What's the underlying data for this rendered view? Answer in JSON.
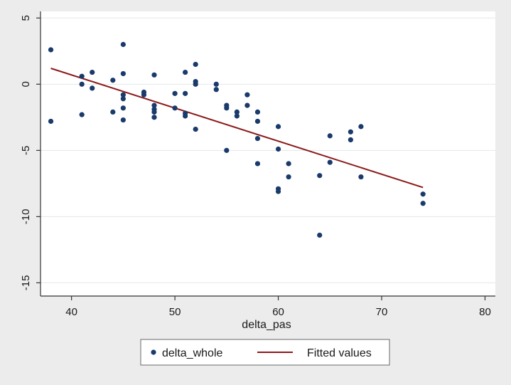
{
  "chart_data": {
    "type": "scatter",
    "title": "",
    "xlabel": "delta_pas",
    "ylabel": "",
    "xlim": [
      37,
      81
    ],
    "ylim": [
      -16,
      5.5
    ],
    "x_ticks": [
      40,
      50,
      60,
      70,
      80
    ],
    "y_ticks": [
      5,
      0,
      -5,
      -10,
      -15
    ],
    "grid": true,
    "legend_position": "bottom",
    "series": [
      {
        "name": "delta_whole",
        "kind": "scatter",
        "color": "#1a3a6b",
        "points": [
          [
            38,
            2.6
          ],
          [
            38,
            -2.8
          ],
          [
            41,
            0.6
          ],
          [
            41,
            0.0
          ],
          [
            41,
            -2.3
          ],
          [
            42,
            0.9
          ],
          [
            42,
            -0.3
          ],
          [
            44,
            0.3
          ],
          [
            44,
            -2.1
          ],
          [
            45,
            3.0
          ],
          [
            45,
            0.8
          ],
          [
            45,
            -0.8
          ],
          [
            45,
            -1.1
          ],
          [
            45,
            -1.8
          ],
          [
            45,
            -2.7
          ],
          [
            47,
            -0.6
          ],
          [
            47,
            -0.8
          ],
          [
            48,
            0.7
          ],
          [
            48,
            -1.6
          ],
          [
            48,
            -1.9
          ],
          [
            48,
            -2.1
          ],
          [
            48,
            -2.5
          ],
          [
            50,
            -0.7
          ],
          [
            50,
            -1.8
          ],
          [
            51,
            0.9
          ],
          [
            51,
            -0.7
          ],
          [
            51,
            -2.2
          ],
          [
            51,
            -2.4
          ],
          [
            52,
            1.5
          ],
          [
            52,
            0.2
          ],
          [
            52,
            0.0
          ],
          [
            52,
            -3.4
          ],
          [
            54,
            0.0
          ],
          [
            54,
            -0.4
          ],
          [
            55,
            -1.6
          ],
          [
            55,
            -1.8
          ],
          [
            55,
            -5.0
          ],
          [
            56,
            -2.1
          ],
          [
            56,
            -2.4
          ],
          [
            57,
            -0.8
          ],
          [
            57,
            -1.6
          ],
          [
            58,
            -2.1
          ],
          [
            58,
            -2.8
          ],
          [
            58,
            -4.1
          ],
          [
            58,
            -6.0
          ],
          [
            60,
            -3.2
          ],
          [
            60,
            -4.9
          ],
          [
            60,
            -7.9
          ],
          [
            60,
            -8.1
          ],
          [
            61,
            -6.0
          ],
          [
            61,
            -7.0
          ],
          [
            64,
            -6.9
          ],
          [
            64,
            -11.4
          ],
          [
            65,
            -3.9
          ],
          [
            65,
            -5.9
          ],
          [
            67,
            -3.6
          ],
          [
            67,
            -4.2
          ],
          [
            68,
            -3.2
          ],
          [
            68,
            -7.0
          ],
          [
            74,
            -8.3
          ],
          [
            74,
            -9.0
          ]
        ]
      },
      {
        "name": "Fitted values",
        "kind": "line",
        "color": "#8b1a1a",
        "points": [
          [
            38,
            1.2
          ],
          [
            74,
            -7.8
          ]
        ]
      }
    ]
  }
}
